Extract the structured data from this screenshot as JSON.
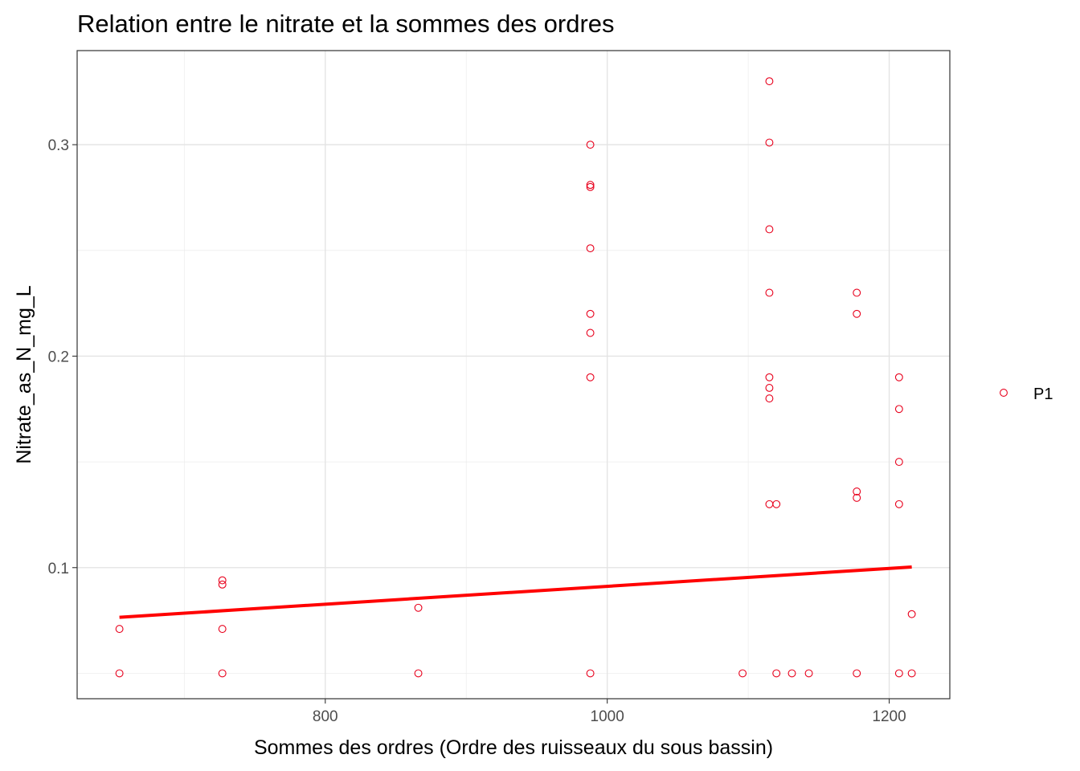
{
  "chart_data": {
    "type": "scatter",
    "title": "Relation entre le nitrate et la sommes des ordres",
    "xlabel": "Sommes des ordres (Ordre des ruisseaux du sous bassin)",
    "ylabel": "Nitrate_as_N_mg_L",
    "xlim": [
      624,
      1243
    ],
    "ylim": [
      0.038,
      0.3445
    ],
    "x_ticks": [
      800,
      1000,
      1200
    ],
    "x_tick_labels": [
      "800",
      "1000",
      "1200"
    ],
    "y_ticks": [
      0.1,
      0.2,
      0.3
    ],
    "y_tick_labels": [
      "0.1",
      "0.2",
      "0.3"
    ],
    "grid": true,
    "legend_position": "right",
    "point_color": "#e8001c",
    "fit_color": "#ff0000",
    "series": [
      {
        "name": "P1",
        "points": [
          [
            654,
            0.05
          ],
          [
            654,
            0.071
          ],
          [
            727,
            0.05
          ],
          [
            727,
            0.071
          ],
          [
            727,
            0.092
          ],
          [
            727,
            0.094
          ],
          [
            866,
            0.05
          ],
          [
            866,
            0.081
          ],
          [
            988,
            0.05
          ],
          [
            988,
            0.19
          ],
          [
            988,
            0.211
          ],
          [
            988,
            0.22
          ],
          [
            988,
            0.251
          ],
          [
            988,
            0.28
          ],
          [
            988,
            0.281
          ],
          [
            988,
            0.3
          ],
          [
            1096,
            0.05
          ],
          [
            1115,
            0.13
          ],
          [
            1115,
            0.18
          ],
          [
            1115,
            0.185
          ],
          [
            1115,
            0.19
          ],
          [
            1115,
            0.23
          ],
          [
            1115,
            0.26
          ],
          [
            1115,
            0.301
          ],
          [
            1115,
            0.33
          ],
          [
            1120,
            0.05
          ],
          [
            1120,
            0.13
          ],
          [
            1131,
            0.05
          ],
          [
            1143,
            0.05
          ],
          [
            1177,
            0.05
          ],
          [
            1177,
            0.133
          ],
          [
            1177,
            0.136
          ],
          [
            1177,
            0.22
          ],
          [
            1177,
            0.23
          ],
          [
            1207,
            0.05
          ],
          [
            1207,
            0.13
          ],
          [
            1207,
            0.15
          ],
          [
            1207,
            0.175
          ],
          [
            1207,
            0.19
          ],
          [
            1216,
            0.05
          ],
          [
            1216,
            0.078
          ]
        ]
      }
    ],
    "fit_line": {
      "x": [
        654,
        1216
      ],
      "y": [
        0.0765,
        0.1003
      ]
    }
  }
}
